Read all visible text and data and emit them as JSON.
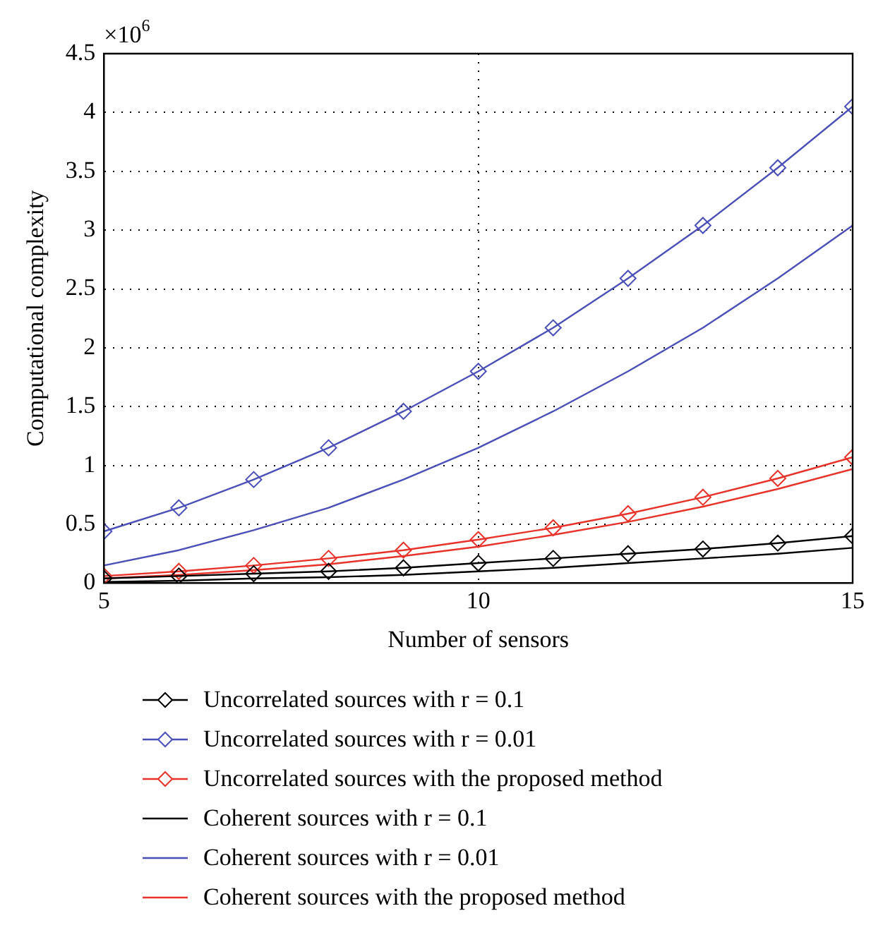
{
  "chart_data": {
    "type": "line",
    "xlabel": "Number of sensors",
    "ylabel": "Computational complexity",
    "annotations": [
      "×10$^{6}$"
    ],
    "x": [
      5,
      6,
      7,
      8,
      9,
      10,
      11,
      12,
      13,
      14,
      15
    ],
    "xlim": [
      5,
      15
    ],
    "xticks": [
      5,
      10,
      15
    ],
    "ylim": [
      0,
      4.5
    ],
    "yticks": [
      0,
      0.5,
      1,
      1.5,
      2,
      2.5,
      3,
      3.5,
      4,
      4.5
    ],
    "grid": true,
    "legend": "bottom",
    "line_style": "solid",
    "series": [
      {
        "name": "Uncorrelated sources with r = 0.1",
        "color": "#000000",
        "marker": "diamond",
        "values": [
          0.04,
          0.06,
          0.08,
          0.1,
          0.13,
          0.17,
          0.21,
          0.25,
          0.29,
          0.34,
          0.4
        ]
      },
      {
        "name": "Uncorrelated sources with r = 0.01",
        "color": "#4b50b8",
        "marker": "diamond",
        "values": [
          0.44,
          0.64,
          0.88,
          1.15,
          1.46,
          1.8,
          2.17,
          2.59,
          3.04,
          3.53,
          4.05
        ]
      },
      {
        "name": "Uncorrelated sources with the proposed method",
        "color": "#e8332a",
        "marker": "diamond",
        "values": [
          0.06,
          0.1,
          0.15,
          0.21,
          0.28,
          0.37,
          0.47,
          0.59,
          0.73,
          0.89,
          1.07
        ]
      },
      {
        "name": "Coherent sources with r = 0.1",
        "color": "#000000",
        "marker": "none",
        "values": [
          0.01,
          0.02,
          0.04,
          0.05,
          0.07,
          0.1,
          0.13,
          0.17,
          0.21,
          0.25,
          0.3
        ]
      },
      {
        "name": "Coherent sources with r = 0.01",
        "color": "#4b50b8",
        "marker": "none",
        "values": [
          0.15,
          0.28,
          0.45,
          0.64,
          0.88,
          1.15,
          1.46,
          1.8,
          2.17,
          2.59,
          3.04
        ]
      },
      {
        "name": "Coherent sources with the proposed method",
        "color": "#e8332a",
        "marker": "none",
        "values": [
          0.04,
          0.07,
          0.11,
          0.16,
          0.23,
          0.31,
          0.41,
          0.52,
          0.65,
          0.8,
          0.97
        ]
      }
    ]
  }
}
